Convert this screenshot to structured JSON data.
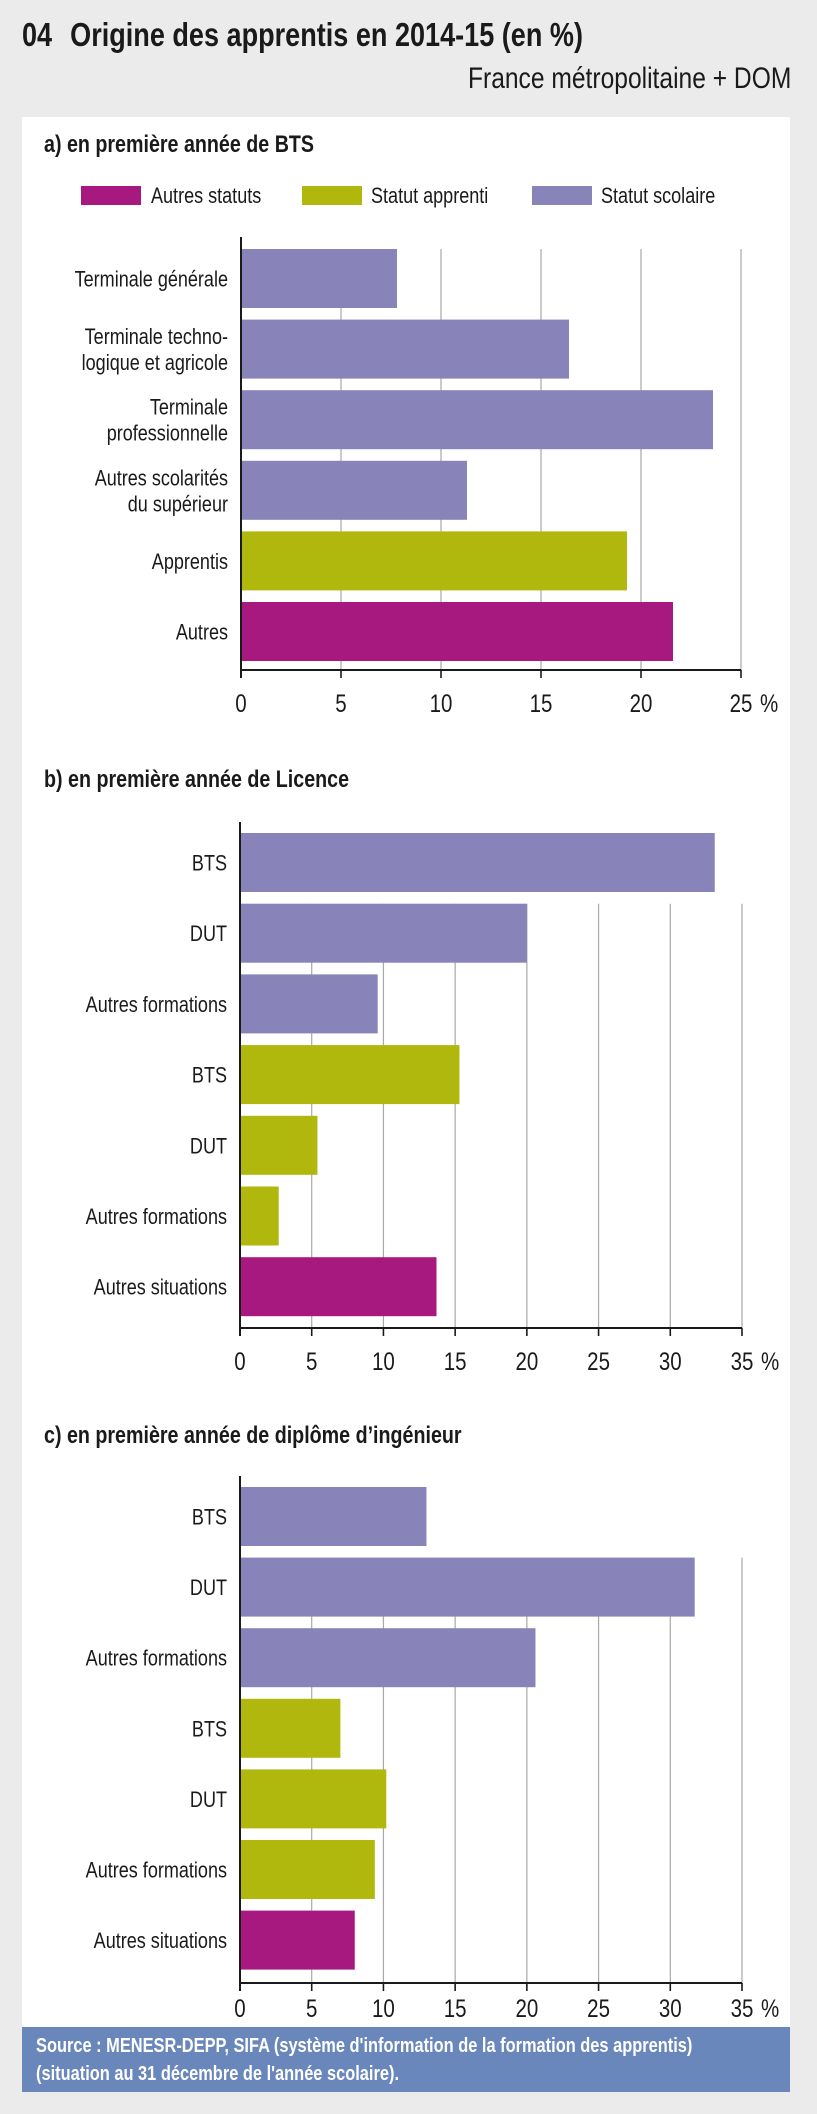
{
  "header": {
    "number": "04",
    "title": "Origine des apprentis en 2014-15 (en %)",
    "subtitle": "France métropolitaine + DOM"
  },
  "colors": {
    "autres_statuts": "#a8197f",
    "statut_apprenti": "#b1b80d",
    "statut_scolaire": "#8883b8",
    "footer_bg": "#6a87bc",
    "page_bg": "#ebebeb"
  },
  "legend": [
    {
      "key": "autres_statuts",
      "label": "Autres statuts"
    },
    {
      "key": "statut_apprenti",
      "label": "Statut apprenti"
    },
    {
      "key": "statut_scolaire",
      "label": "Statut scolaire"
    }
  ],
  "chart_data": [
    {
      "type": "bar",
      "orientation": "horizontal",
      "title": "a) en première année de BTS",
      "xlabel": "",
      "ylabel": "",
      "xlim": [
        0,
        25
      ],
      "xticks": [
        "0",
        "5",
        "10",
        "15",
        "20",
        "25 %"
      ],
      "grid": true,
      "legend_position": "top",
      "categories": [
        [
          "Terminale générale"
        ],
        [
          "Terminale techno-",
          "logique et agricole"
        ],
        [
          "Terminale",
          "professionnelle"
        ],
        [
          "Autres scolarités",
          "du supérieur"
        ],
        [
          "Apprentis"
        ],
        [
          "Autres"
        ]
      ],
      "values": [
        7.8,
        16.4,
        23.6,
        11.3,
        19.3,
        21.6
      ],
      "series_keys": [
        "statut_scolaire",
        "statut_scolaire",
        "statut_scolaire",
        "statut_scolaire",
        "statut_apprenti",
        "autres_statuts"
      ]
    },
    {
      "type": "bar",
      "orientation": "horizontal",
      "title": "b) en première année de Licence",
      "xlabel": "",
      "ylabel": "",
      "xlim": [
        0,
        35
      ],
      "xticks": [
        "0",
        "5",
        "10",
        "15",
        "20",
        "25",
        "30",
        "35 %"
      ],
      "grid": true,
      "categories": [
        [
          "BTS"
        ],
        [
          "DUT"
        ],
        [
          "Autres formations"
        ],
        [
          "BTS"
        ],
        [
          "DUT"
        ],
        [
          "Autres formations"
        ],
        [
          "Autres situations"
        ]
      ],
      "values": [
        33.1,
        20.0,
        9.6,
        15.3,
        5.4,
        2.7,
        13.7
      ],
      "series_keys": [
        "statut_scolaire",
        "statut_scolaire",
        "statut_scolaire",
        "statut_apprenti",
        "statut_apprenti",
        "statut_apprenti",
        "autres_statuts"
      ]
    },
    {
      "type": "bar",
      "orientation": "horizontal",
      "title": "c) en première année de diplôme d’ingénieur",
      "xlabel": "",
      "ylabel": "",
      "xlim": [
        0,
        35
      ],
      "xticks": [
        "0",
        "5",
        "10",
        "15",
        "20",
        "25",
        "30",
        "35 %"
      ],
      "grid": true,
      "categories": [
        [
          "BTS"
        ],
        [
          "DUT"
        ],
        [
          "Autres formations"
        ],
        [
          "BTS"
        ],
        [
          "DUT"
        ],
        [
          "Autres formations"
        ],
        [
          "Autres situations"
        ]
      ],
      "values": [
        13.0,
        31.7,
        20.6,
        7.0,
        10.2,
        9.4,
        8.0
      ],
      "series_keys": [
        "statut_scolaire",
        "statut_scolaire",
        "statut_scolaire",
        "statut_apprenti",
        "statut_apprenti",
        "statut_apprenti",
        "autres_statuts"
      ]
    }
  ],
  "footer": {
    "line1": "Source : MENESR-DEPP, SIFA (système d'information de la formation des apprentis)",
    "line2": "(situation au 31 décembre de l'année scolaire)."
  }
}
